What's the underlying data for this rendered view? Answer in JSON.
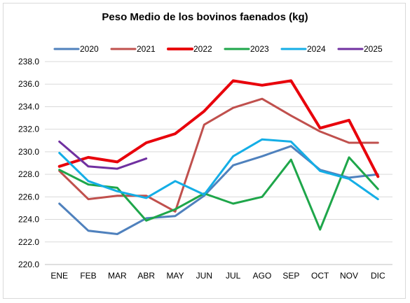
{
  "chart_data": {
    "type": "line",
    "title": "Peso Medio de los bovinos faenados (kg)",
    "xlabel": "",
    "ylabel": "",
    "categories": [
      "ENE",
      "FEB",
      "MAR",
      "ABR",
      "MAY",
      "JUN",
      "JUL",
      "AGO",
      "SEP",
      "OCT",
      "NOV",
      "DIC"
    ],
    "ylim": [
      220.0,
      238.0
    ],
    "yticks": [
      "220.0",
      "222.0",
      "224.0",
      "226.0",
      "228.0",
      "230.0",
      "232.0",
      "234.0",
      "236.0",
      "238.0"
    ],
    "ytick_values": [
      220,
      222,
      224,
      226,
      228,
      230,
      232,
      234,
      236,
      238
    ],
    "grid": true,
    "legend_position": "top",
    "series": [
      {
        "name": "2020",
        "color": "#4f81bd",
        "width": 3,
        "values": [
          225.4,
          223.0,
          222.7,
          224.1,
          224.3,
          226.1,
          228.8,
          229.6,
          230.5,
          228.4,
          227.7,
          228.0
        ]
      },
      {
        "name": "2021",
        "color": "#c0504d",
        "width": 3,
        "values": [
          228.3,
          225.8,
          226.1,
          226.1,
          224.7,
          232.4,
          233.9,
          234.7,
          233.2,
          231.8,
          230.8,
          230.8
        ]
      },
      {
        "name": "2022",
        "color": "#e8000b",
        "width": 4,
        "values": [
          228.7,
          229.5,
          229.1,
          230.8,
          231.6,
          233.6,
          236.3,
          235.9,
          236.3,
          232.1,
          232.8,
          227.8
        ]
      },
      {
        "name": "2023",
        "color": "#1ea64a",
        "width": 3,
        "values": [
          228.4,
          227.1,
          226.8,
          223.9,
          224.9,
          226.3,
          225.4,
          226.0,
          229.3,
          223.1,
          229.5,
          226.7
        ]
      },
      {
        "name": "2024",
        "color": "#14aee6",
        "width": 3,
        "values": [
          229.9,
          227.4,
          226.5,
          225.9,
          227.4,
          226.2,
          229.6,
          231.1,
          230.9,
          228.3,
          227.6,
          225.8
        ]
      },
      {
        "name": "2025",
        "color": "#7030a0",
        "width": 3,
        "values": [
          230.9,
          228.7,
          228.5,
          229.4,
          null,
          null,
          null,
          null,
          null,
          null,
          null,
          null
        ]
      }
    ]
  }
}
